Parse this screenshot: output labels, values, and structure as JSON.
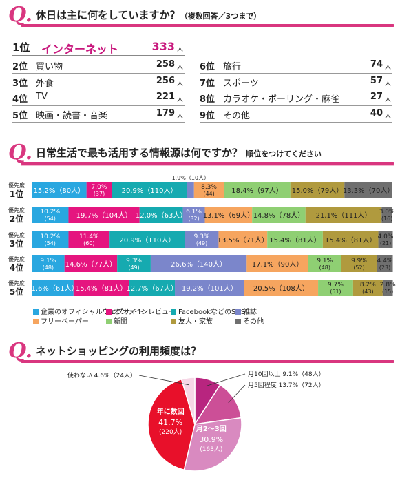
{
  "q1": {
    "mark": "Q.",
    "title": "休日は主に何をしていますか？",
    "subtitle": "（複数回答／3つまで）",
    "unit": "人",
    "top": {
      "rank": "1位",
      "label": "インターネット",
      "value": "333"
    },
    "left": [
      {
        "rank": "2位",
        "label": "買い物",
        "value": "258"
      },
      {
        "rank": "3位",
        "label": "外食",
        "value": "256"
      },
      {
        "rank": "4位",
        "label": "TV",
        "value": "221"
      },
      {
        "rank": "5位",
        "label": "映画・読書・音楽",
        "value": "179"
      }
    ],
    "right": [
      {
        "rank": "6位",
        "label": "旅行",
        "value": "74"
      },
      {
        "rank": "7位",
        "label": "スポーツ",
        "value": "57"
      },
      {
        "rank": "8位",
        "label": "カラオケ・ボーリング・麻雀",
        "value": "27"
      },
      {
        "rank": "9位",
        "label": "その他",
        "value": "40"
      }
    ]
  },
  "q2": {
    "mark": "Q.",
    "title": "日常生活で最も活用する情報源は何ですか？",
    "subtitle": "順位をつけてください",
    "priority_label": "優先度"
  },
  "q3": {
    "mark": "Q.",
    "title": "ネットショッピングの利用頻度は？"
  },
  "chart_data": [
    {
      "type": "bar",
      "stacked": true,
      "orientation": "horizontal",
      "categories": [
        "1位",
        "2位",
        "3位",
        "4位",
        "5位"
      ],
      "series": [
        {
          "name": "企業のオフィシャルウェブサイト",
          "color": "#29a7e0",
          "values": [
            15.2,
            10.2,
            10.2,
            9.1,
            11.6
          ],
          "counts": [
            80,
            54,
            54,
            48,
            61
          ]
        },
        {
          "name": "オンラインレビュー",
          "color": "#e5157f",
          "values": [
            7.0,
            19.7,
            11.4,
            14.6,
            15.4
          ],
          "counts": [
            37,
            104,
            60,
            77,
            81
          ]
        },
        {
          "name": "FacebookなどのSNS",
          "color": "#16aab0",
          "values": [
            20.9,
            12.0,
            20.9,
            9.3,
            12.7
          ],
          "counts": [
            110,
            63,
            110,
            49,
            67
          ]
        },
        {
          "name": "雑誌",
          "color": "#7b86cb",
          "values": [
            1.9,
            6.1,
            9.3,
            26.6,
            19.2
          ],
          "counts": [
            10,
            32,
            49,
            140,
            101
          ]
        },
        {
          "name": "フリーペーパー",
          "color": "#f6a55f",
          "values": [
            8.3,
            13.1,
            13.5,
            17.1,
            20.5
          ],
          "counts": [
            44,
            69,
            71,
            90,
            108
          ]
        },
        {
          "name": "新聞",
          "color": "#8fcf73",
          "values": [
            18.4,
            14.8,
            15.4,
            9.1,
            9.7
          ],
          "counts": [
            97,
            78,
            81,
            48,
            51
          ]
        },
        {
          "name": "友人・家族",
          "color": "#b09a3e",
          "values": [
            15.0,
            21.1,
            15.4,
            9.9,
            8.2
          ],
          "counts": [
            79,
            111,
            81,
            52,
            43
          ]
        },
        {
          "name": "その他",
          "color": "#6f6f6f",
          "values": [
            13.3,
            3.0,
            4.0,
            4.4,
            2.8
          ],
          "counts": [
            70,
            16,
            21,
            23,
            15
          ]
        }
      ]
    },
    {
      "type": "pie",
      "labels": [
        "月10回以上",
        "月5回程度",
        "月2〜3回",
        "年に数回",
        "使わない"
      ],
      "values": [
        9.1,
        13.7,
        30.9,
        41.7,
        4.6
      ],
      "counts": [
        48,
        72,
        163,
        220,
        24
      ],
      "colors": [
        "#b8257f",
        "#cc4f97",
        "#d98ac0",
        "#e8102a",
        "#f6d7e6"
      ]
    }
  ]
}
